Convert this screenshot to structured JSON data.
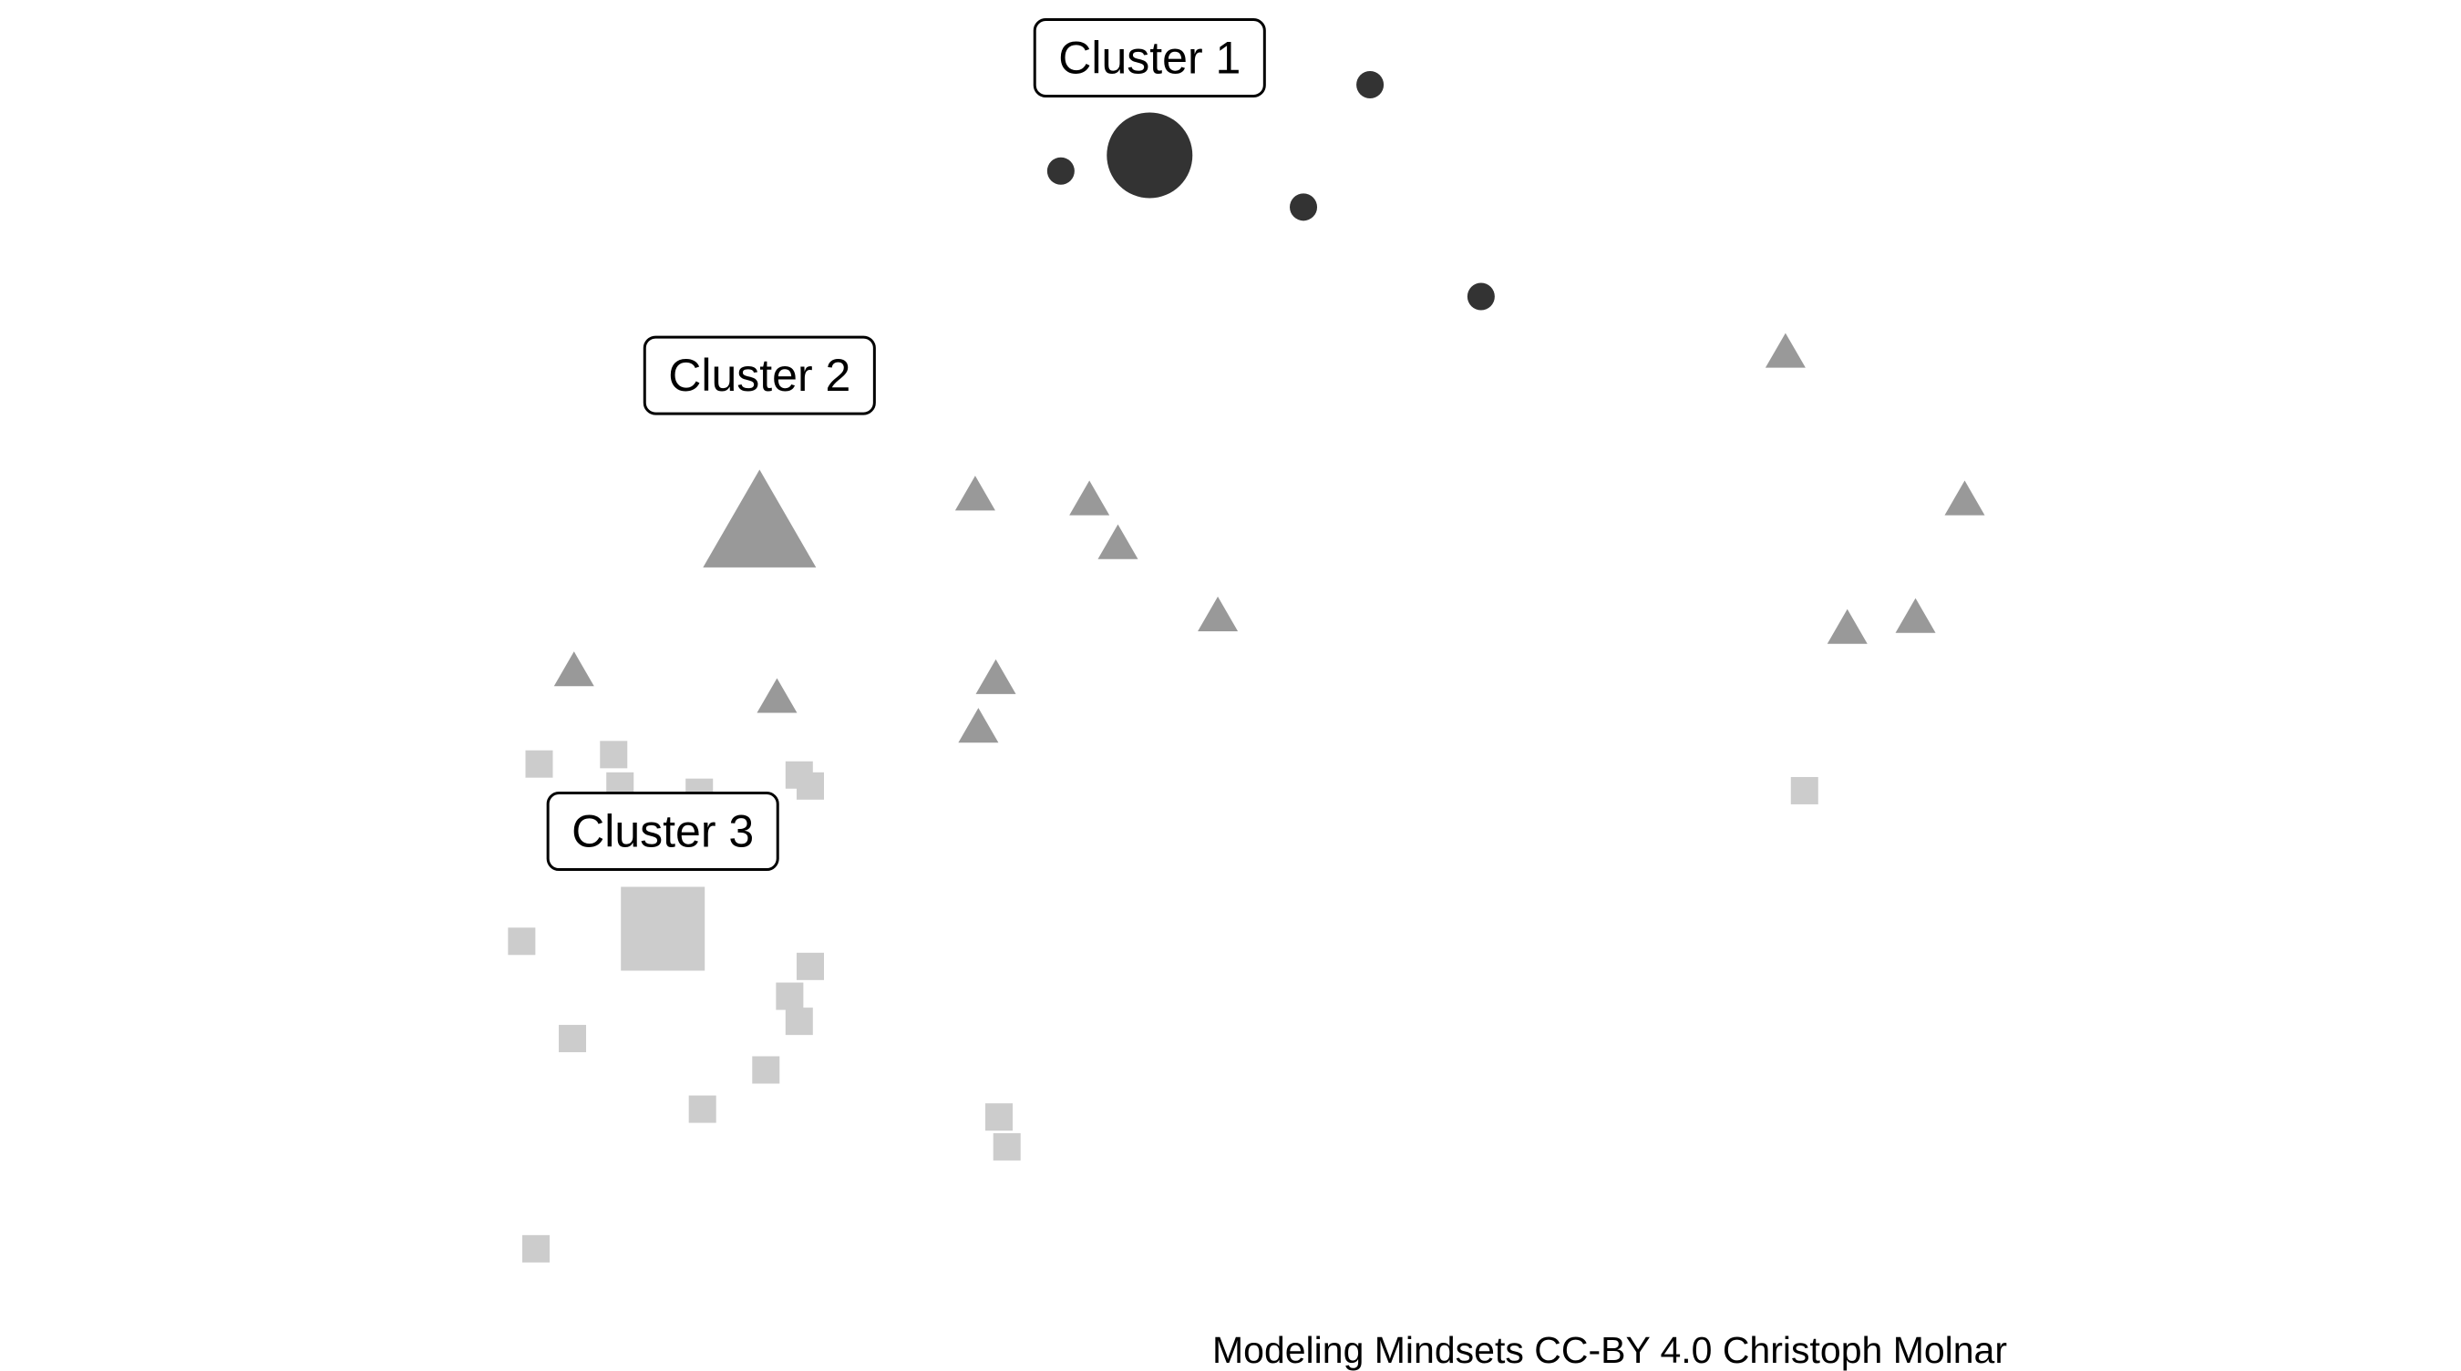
{
  "chart_data": {
    "type": "scatter",
    "title": "",
    "xlabel": "",
    "ylabel": "",
    "axes_visible": false,
    "grid": false,
    "legend": "none",
    "xlim": [
      0,
      1552
    ],
    "ylim": [
      0,
      871
    ],
    "series": [
      {
        "cluster": 1,
        "marker": "circle",
        "color": "#333333",
        "points": [
          {
            "x": 669,
            "y": 762
          },
          {
            "x": 864,
            "y": 817
          },
          {
            "x": 822,
            "y": 739
          },
          {
            "x": 934,
            "y": 682
          }
        ],
        "centroid": {
          "x": 725,
          "y": 772
        },
        "label": {
          "text": "Cluster 1"
        }
      },
      {
        "cluster": 2,
        "marker": "triangle",
        "color": "#999999",
        "points": [
          {
            "x": 615,
            "y": 554
          },
          {
            "x": 687,
            "y": 551
          },
          {
            "x": 705,
            "y": 523
          },
          {
            "x": 768,
            "y": 477
          },
          {
            "x": 1126,
            "y": 645
          },
          {
            "x": 1239,
            "y": 551
          },
          {
            "x": 1165,
            "y": 469
          },
          {
            "x": 1208,
            "y": 476
          },
          {
            "x": 362,
            "y": 442
          },
          {
            "x": 490,
            "y": 425
          },
          {
            "x": 628,
            "y": 437
          },
          {
            "x": 617,
            "y": 406
          }
        ],
        "centroid": {
          "x": 479,
          "y": 533
        },
        "label": {
          "text": "Cluster 2"
        }
      },
      {
        "cluster": 3,
        "marker": "square",
        "color": "#cccccc",
        "points": [
          {
            "x": 340,
            "y": 384
          },
          {
            "x": 387,
            "y": 390
          },
          {
            "x": 391,
            "y": 370
          },
          {
            "x": 441,
            "y": 366
          },
          {
            "x": 504,
            "y": 377
          },
          {
            "x": 511,
            "y": 370
          },
          {
            "x": 1138,
            "y": 367
          },
          {
            "x": 329,
            "y": 271
          },
          {
            "x": 511,
            "y": 255
          },
          {
            "x": 498,
            "y": 236
          },
          {
            "x": 504,
            "y": 220
          },
          {
            "x": 361,
            "y": 209
          },
          {
            "x": 483,
            "y": 189
          },
          {
            "x": 443,
            "y": 164
          },
          {
            "x": 630,
            "y": 159
          },
          {
            "x": 635,
            "y": 140
          },
          {
            "x": 338,
            "y": 75
          }
        ],
        "centroid": {
          "x": 418,
          "y": 279
        },
        "label": {
          "text": "Cluster 3"
        }
      }
    ]
  },
  "caption": "Modeling Mindsets CC-BY 4.0 Christoph Molnar"
}
